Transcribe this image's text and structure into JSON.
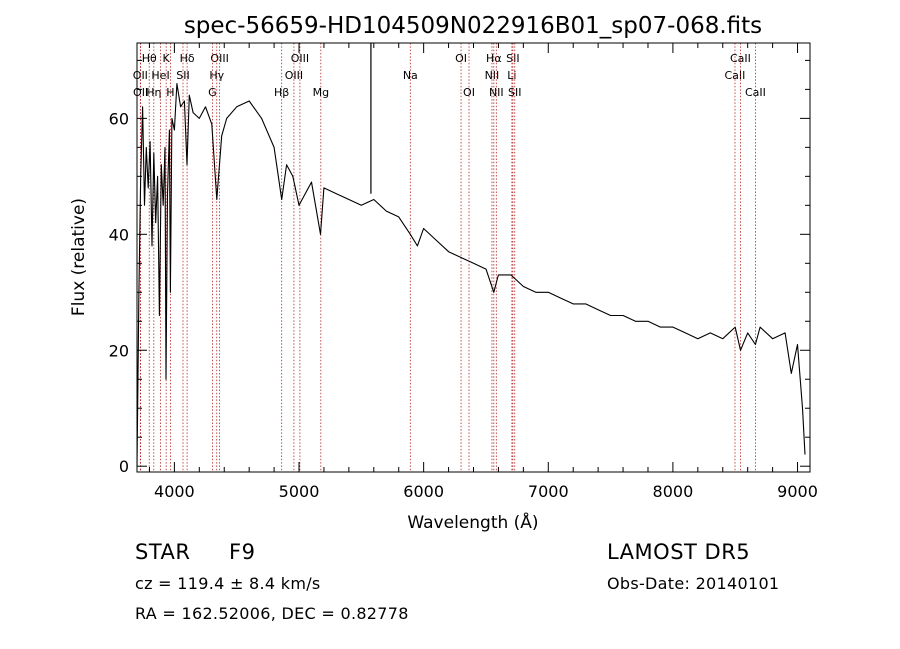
{
  "chart_data": {
    "type": "line",
    "title": "spec-56659-HD104509N022916B01_sp07-068.fits",
    "xlabel": "Wavelength (Å)",
    "ylabel": "Flux (relative)",
    "xlim": [
      3700,
      9100
    ],
    "ylim": [
      -1,
      73
    ],
    "xticks": [
      4000,
      5000,
      6000,
      7000,
      8000,
      9000
    ],
    "yticks": [
      0,
      20,
      40,
      60
    ],
    "grid": false,
    "series": [
      {
        "x": [
          3700,
          3715,
          3730,
          3745,
          3760,
          3775,
          3790,
          3805,
          3820,
          3835,
          3850,
          3865,
          3880,
          3895,
          3910,
          3925,
          3933,
          3945,
          3960,
          3968,
          3980,
          4000,
          4020,
          4050,
          4080,
          4101,
          4120,
          4150,
          4200,
          4250,
          4300,
          4340,
          4380,
          4420,
          4500,
          4600,
          4700,
          4800,
          4861,
          4900,
          4950,
          5000,
          5100,
          5172,
          5200,
          5300,
          5400,
          5500,
          5600,
          5700,
          5800,
          5893,
          5950,
          6000,
          6100,
          6200,
          6300,
          6400,
          6500,
          6563,
          6600,
          6700,
          6800,
          6900,
          7000,
          7100,
          7200,
          7300,
          7400,
          7500,
          7600,
          7700,
          7800,
          7900,
          8000,
          8100,
          8200,
          8300,
          8400,
          8500,
          8542,
          8600,
          8662,
          8700,
          8800,
          8900,
          8950,
          9000,
          9040,
          9060
        ],
        "y": [
          0,
          30,
          50,
          62,
          45,
          55,
          48,
          56,
          38,
          54,
          42,
          50,
          26,
          52,
          45,
          55,
          15,
          47,
          58,
          30,
          60,
          58,
          66,
          62,
          63,
          52,
          64,
          61,
          60,
          62,
          59,
          46,
          57,
          60,
          62,
          63,
          60,
          55,
          46,
          52,
          50,
          45,
          49,
          40,
          48,
          47,
          46,
          45,
          46,
          44,
          43,
          40,
          38,
          41,
          39,
          37,
          36,
          35,
          34,
          30,
          33,
          33,
          31,
          30,
          30,
          29,
          28,
          28,
          27,
          26,
          26,
          25,
          25,
          24,
          24,
          23,
          22,
          23,
          22,
          24,
          20,
          23,
          21,
          24,
          22,
          23,
          16,
          21,
          10,
          2
        ]
      }
    ],
    "lines": [
      {
        "label": "Hθ",
        "x": 3798,
        "row": 1
      },
      {
        "label": "OII",
        "x": 3727,
        "row": 2
      },
      {
        "label": "OII",
        "x": 3729,
        "row": 3
      },
      {
        "label": "Hη",
        "x": 3835,
        "row": 3
      },
      {
        "label": "HeI",
        "x": 3889,
        "row": 2
      },
      {
        "label": "K",
        "x": 3934,
        "row": 1
      },
      {
        "label": "H",
        "x": 3968,
        "row": 3
      },
      {
        "label": "Hδ",
        "x": 4102,
        "row": 1
      },
      {
        "label": "SII",
        "x": 4069,
        "row": 2
      },
      {
        "label": "OIII",
        "x": 4363,
        "row": 1
      },
      {
        "label": "Hγ",
        "x": 4340,
        "row": 2
      },
      {
        "label": "G",
        "x": 4305,
        "row": 3
      },
      {
        "label": "Hβ",
        "x": 4861,
        "row": 3
      },
      {
        "label": "OIII",
        "x": 4959,
        "row": 2
      },
      {
        "label": "OIII",
        "x": 5007,
        "row": 1
      },
      {
        "label": "Mg",
        "x": 5175,
        "row": 3
      },
      {
        "label": "Na",
        "x": 5893,
        "row": 2
      },
      {
        "label": "OI",
        "x": 6300,
        "row": 1
      },
      {
        "label": "OI",
        "x": 6364,
        "row": 3
      },
      {
        "label": "NII",
        "x": 6548,
        "row": 2
      },
      {
        "label": "Hα",
        "x": 6563,
        "row": 1
      },
      {
        "label": "NII",
        "x": 6583,
        "row": 3
      },
      {
        "label": "SII",
        "x": 6716,
        "row": 1
      },
      {
        "label": "Li",
        "x": 6708,
        "row": 2
      },
      {
        "label": "SII",
        "x": 6731,
        "row": 3
      },
      {
        "label": "CaII",
        "x": 8498,
        "row": 2
      },
      {
        "label": "CaII",
        "x": 8542,
        "row": 1
      },
      {
        "label": "CaII",
        "x": 8662,
        "row": 3
      }
    ],
    "spike": {
      "x": 5577,
      "y_top": 73
    }
  },
  "info": {
    "class_label": "STAR",
    "subclass": "F9",
    "survey": "LAMOST  DR5",
    "cz": "cz = 119.4 ± 8.4 km/s",
    "obs_date": "Obs-Date: 20140101",
    "coords": "RA = 162.52006, DEC =    0.82778"
  }
}
